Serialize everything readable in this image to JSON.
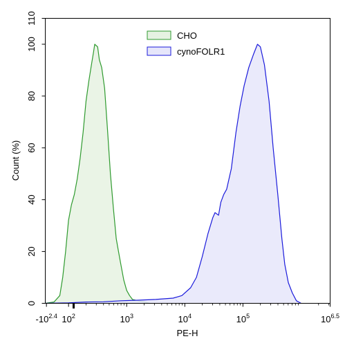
{
  "chart_data": {
    "type": "area",
    "title": "",
    "xlabel": "PE-H",
    "ylabel": "Count (%)",
    "x_scale": "biexponential (log10 above ~10^2)",
    "xlim_log10": [
      1.6,
      6.5
    ],
    "ylim": [
      0,
      110
    ],
    "y_ticks": [
      0,
      20,
      40,
      60,
      80,
      100,
      110
    ],
    "x_ticks": [
      {
        "base": "-10",
        "exp": "2.4",
        "pos": 1.62
      },
      {
        "base": "10",
        "exp": "2",
        "pos": 2.0
      },
      {
        "base": "10",
        "exp": "3",
        "pos": 3.0
      },
      {
        "base": "10",
        "exp": "4",
        "pos": 4.0
      },
      {
        "base": "10",
        "exp": "5",
        "pos": 5.0
      },
      {
        "base": "10",
        "exp": "6.5",
        "pos": 6.5
      }
    ],
    "grid": false,
    "legend_position": "top-center",
    "series": [
      {
        "name": "CHO",
        "line_color": "#2e9a2e",
        "fill_color": "#e6f2e2",
        "points": [
          [
            1.6,
            0
          ],
          [
            1.75,
            0.5
          ],
          [
            1.85,
            3
          ],
          [
            1.9,
            10
          ],
          [
            1.95,
            20
          ],
          [
            2.0,
            32
          ],
          [
            2.05,
            38
          ],
          [
            2.1,
            42
          ],
          [
            2.15,
            48
          ],
          [
            2.2,
            56
          ],
          [
            2.25,
            66
          ],
          [
            2.3,
            78
          ],
          [
            2.35,
            86
          ],
          [
            2.4,
            93
          ],
          [
            2.43,
            97
          ],
          [
            2.45,
            100
          ],
          [
            2.5,
            99
          ],
          [
            2.53,
            94
          ],
          [
            2.57,
            91
          ],
          [
            2.62,
            83
          ],
          [
            2.67,
            67
          ],
          [
            2.72,
            50
          ],
          [
            2.77,
            37
          ],
          [
            2.82,
            25
          ],
          [
            2.86,
            20
          ],
          [
            2.9,
            15
          ],
          [
            2.95,
            9
          ],
          [
            3.0,
            5
          ],
          [
            3.05,
            3
          ],
          [
            3.1,
            1.5
          ],
          [
            3.2,
            1
          ],
          [
            3.3,
            0.5
          ],
          [
            3.4,
            0
          ]
        ]
      },
      {
        "name": "cynoFOLR1",
        "line_color": "#1a1adb",
        "fill_color": "#e6e6fa",
        "points": [
          [
            1.6,
            0
          ],
          [
            2.0,
            0.2
          ],
          [
            2.3,
            0.5
          ],
          [
            2.6,
            0.6
          ],
          [
            2.9,
            1
          ],
          [
            3.2,
            1.2
          ],
          [
            3.5,
            1.5
          ],
          [
            3.8,
            2
          ],
          [
            3.95,
            3
          ],
          [
            4.1,
            6
          ],
          [
            4.2,
            10
          ],
          [
            4.3,
            18
          ],
          [
            4.4,
            27
          ],
          [
            4.48,
            33
          ],
          [
            4.52,
            35
          ],
          [
            4.58,
            34
          ],
          [
            4.62,
            39
          ],
          [
            4.67,
            42
          ],
          [
            4.72,
            44
          ],
          [
            4.8,
            52
          ],
          [
            4.88,
            66
          ],
          [
            4.95,
            76
          ],
          [
            5.02,
            84
          ],
          [
            5.1,
            91
          ],
          [
            5.18,
            96
          ],
          [
            5.25,
            100
          ],
          [
            5.3,
            99
          ],
          [
            5.37,
            92
          ],
          [
            5.45,
            78
          ],
          [
            5.52,
            60
          ],
          [
            5.6,
            42
          ],
          [
            5.67,
            25
          ],
          [
            5.72,
            15
          ],
          [
            5.78,
            8
          ],
          [
            5.85,
            4
          ],
          [
            5.92,
            1
          ],
          [
            6.0,
            0
          ]
        ]
      }
    ]
  }
}
